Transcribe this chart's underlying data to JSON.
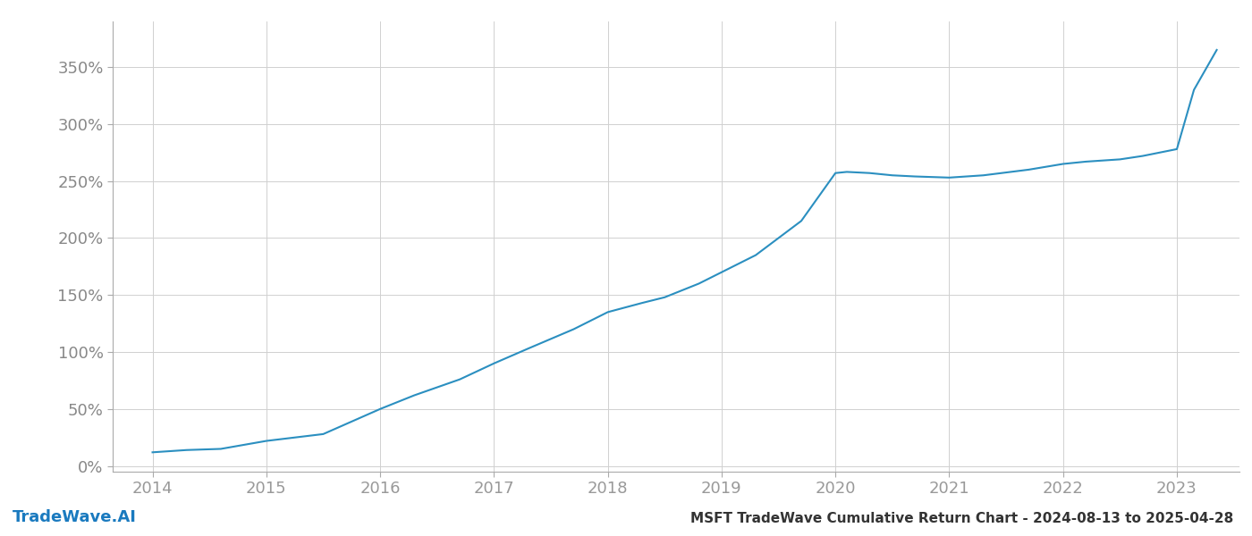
{
  "title": "MSFT TradeWave Cumulative Return Chart - 2024-08-13 to 2025-04-28",
  "watermark": "TradeWave.AI",
  "line_color": "#2b8fc0",
  "background_color": "#ffffff",
  "grid_color": "#d0d0d0",
  "x_tick_color": "#999999",
  "y_tick_color": "#888888",
  "title_color": "#333333",
  "watermark_color": "#1a7abf",
  "years": [
    2014.0,
    2014.3,
    2014.6,
    2015.0,
    2015.5,
    2016.0,
    2016.3,
    2016.7,
    2017.0,
    2017.3,
    2017.7,
    2018.0,
    2018.3,
    2018.5,
    2018.8,
    2019.0,
    2019.3,
    2019.7,
    2020.0,
    2020.1,
    2020.3,
    2020.5,
    2020.7,
    2021.0,
    2021.3,
    2021.7,
    2022.0,
    2022.2,
    2022.5,
    2022.7,
    2023.0,
    2023.15,
    2023.35
  ],
  "values": [
    12,
    14,
    15,
    22,
    28,
    50,
    62,
    76,
    90,
    103,
    120,
    135,
    143,
    148,
    160,
    170,
    185,
    215,
    257,
    258,
    257,
    255,
    254,
    253,
    255,
    260,
    265,
    267,
    269,
    272,
    278,
    330,
    365
  ],
  "yticks": [
    0,
    50,
    100,
    150,
    200,
    250,
    300,
    350
  ],
  "xticks": [
    2014,
    2015,
    2016,
    2017,
    2018,
    2019,
    2020,
    2021,
    2022,
    2023
  ],
  "ylim": [
    -5,
    390
  ],
  "xlim": [
    2013.65,
    2023.55
  ],
  "line_width": 1.5,
  "title_fontsize": 11,
  "tick_fontsize": 13,
  "watermark_fontsize": 13
}
